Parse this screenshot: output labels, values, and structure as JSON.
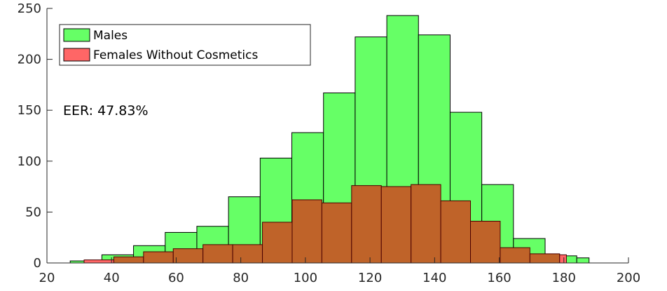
{
  "chart_data": {
    "type": "histogram",
    "xlim": [
      20,
      200
    ],
    "ylim": [
      0,
      250
    ],
    "x_ticks": [
      20,
      40,
      60,
      80,
      100,
      120,
      140,
      160,
      180,
      200
    ],
    "y_ticks": [
      0,
      50,
      100,
      150,
      200,
      250
    ],
    "grid": false,
    "legend_placement": "top-left",
    "annotation": "EER: 47.83%",
    "series": [
      {
        "name": "Males",
        "color": "#66ff66",
        "bins": [
          {
            "x0": 27.2,
            "x1": 37.0,
            "count": 2
          },
          {
            "x0": 37.0,
            "x1": 46.8,
            "count": 8
          },
          {
            "x0": 46.8,
            "x1": 56.6,
            "count": 17
          },
          {
            "x0": 56.6,
            "x1": 66.4,
            "count": 30
          },
          {
            "x0": 66.4,
            "x1": 76.2,
            "count": 36
          },
          {
            "x0": 76.2,
            "x1": 86.0,
            "count": 65
          },
          {
            "x0": 86.0,
            "x1": 95.8,
            "count": 103
          },
          {
            "x0": 95.8,
            "x1": 105.6,
            "count": 128
          },
          {
            "x0": 105.6,
            "x1": 115.4,
            "count": 167
          },
          {
            "x0": 115.4,
            "x1": 125.2,
            "count": 222
          },
          {
            "x0": 125.2,
            "x1": 135.0,
            "count": 243
          },
          {
            "x0": 135.0,
            "x1": 144.8,
            "count": 224
          },
          {
            "x0": 144.8,
            "x1": 154.6,
            "count": 148
          },
          {
            "x0": 154.6,
            "x1": 164.4,
            "count": 77
          },
          {
            "x0": 164.4,
            "x1": 174.2,
            "count": 24
          },
          {
            "x0": 174.2,
            "x1": 184.0,
            "count": 7
          },
          {
            "x0": 184.0,
            "x1": 187.8,
            "count": 5
          }
        ]
      },
      {
        "name": "Females Without Cosmetics",
        "color": "#ff6666",
        "overlap_color": "#bf6329",
        "bins": [
          {
            "x0": 31.5,
            "x1": 40.7,
            "count": 3
          },
          {
            "x0": 40.7,
            "x1": 49.9,
            "count": 6
          },
          {
            "x0": 49.9,
            "x1": 59.1,
            "count": 11
          },
          {
            "x0": 59.1,
            "x1": 68.3,
            "count": 14
          },
          {
            "x0": 68.3,
            "x1": 77.5,
            "count": 18
          },
          {
            "x0": 77.5,
            "x1": 86.7,
            "count": 18
          },
          {
            "x0": 86.7,
            "x1": 95.9,
            "count": 40
          },
          {
            "x0": 95.9,
            "x1": 105.1,
            "count": 62
          },
          {
            "x0": 105.1,
            "x1": 114.3,
            "count": 59
          },
          {
            "x0": 114.3,
            "x1": 123.5,
            "count": 76
          },
          {
            "x0": 123.5,
            "x1": 132.7,
            "count": 75
          },
          {
            "x0": 132.7,
            "x1": 141.9,
            "count": 77
          },
          {
            "x0": 141.9,
            "x1": 151.1,
            "count": 61
          },
          {
            "x0": 151.1,
            "x1": 160.3,
            "count": 41
          },
          {
            "x0": 160.3,
            "x1": 169.5,
            "count": 15
          },
          {
            "x0": 169.5,
            "x1": 178.7,
            "count": 9
          },
          {
            "x0": 178.7,
            "x1": 180.8,
            "count": 8
          }
        ]
      }
    ]
  }
}
